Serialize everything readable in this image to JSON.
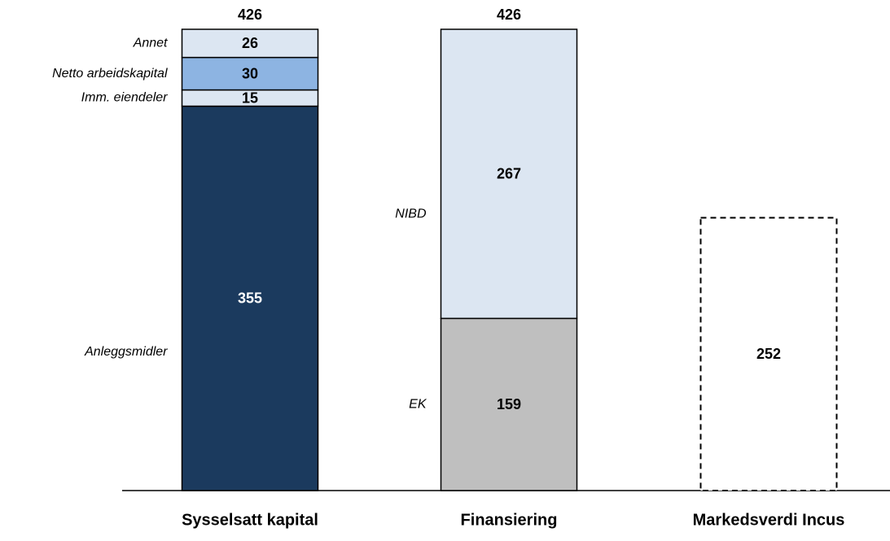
{
  "chart_data": {
    "type": "stacked_bar",
    "categories": [
      "Sysselsatt kapital",
      "Finansiering",
      "Markedsverdi Incus"
    ],
    "totals": [
      426,
      426,
      null
    ],
    "series": [
      {
        "name": "Anleggsmidler",
        "color": "#1b3a5e",
        "label_color": "#ffffff",
        "values": [
          355,
          null,
          null
        ]
      },
      {
        "name": "Imm. eiendeler",
        "color": "#dce6f2",
        "label_color": "#000000",
        "values": [
          15,
          null,
          null
        ]
      },
      {
        "name": "Netto arbeidskapital",
        "color": "#8db4e2",
        "label_color": "#000000",
        "values": [
          30,
          null,
          null
        ]
      },
      {
        "name": "Annet",
        "color": "#dce6f2",
        "label_color": "#000000",
        "values": [
          26,
          null,
          null
        ]
      },
      {
        "name": "EK",
        "color": "#bfbfbf",
        "label_color": "#000000",
        "values": [
          null,
          159,
          null
        ]
      },
      {
        "name": "NIBD",
        "color": "#dce6f2",
        "label_color": "#000000",
        "values": [
          null,
          267,
          null
        ]
      },
      {
        "color": "#ffffff",
        "label_color": "#000000",
        "dashed": true,
        "values": [
          null,
          null,
          252
        ]
      }
    ]
  }
}
